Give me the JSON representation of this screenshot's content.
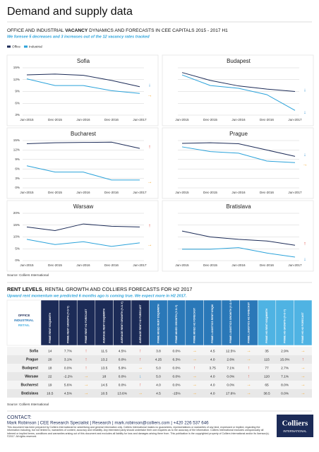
{
  "header": {
    "title": "Demand and supply data",
    "subtitle_parts": [
      "OFFICE AND INDUSTRIAL ",
      "VACANCY",
      " DYNAMICS AND FORECASTS IN CEE CAPITALS 2015 - 2017 H1"
    ],
    "lead": "We foresee 5 decreases and 3 increases out of the 12 vacancy rates tracked"
  },
  "chart_data": [
    {
      "type": "line",
      "title": "Sofia",
      "categories": [
        "Jun-2015",
        "Dec-2015",
        "Jun-2016",
        "Dec-2016",
        "Jun-2017"
      ],
      "ylim": [
        3,
        15
      ],
      "yticks": [
        {
          "value": 3,
          "label": "3%"
        },
        {
          "value": 6,
          "label": "6%"
        },
        {
          "value": 9,
          "label": "9%"
        },
        {
          "value": 12,
          "label": "12%"
        },
        {
          "value": 15,
          "label": "15%"
        }
      ],
      "grid": true,
      "series": [
        {
          "name": "Office",
          "color": "#1c2b57",
          "values": [
            13.2,
            13.4,
            13.1,
            11.8,
            10.2
          ],
          "forecast": "↓"
        },
        {
          "name": "Industrial",
          "color": "#2aa2da",
          "values": [
            12.2,
            10.5,
            10.5,
            9.2,
            8.5
          ],
          "forecast": "→"
        }
      ]
    },
    {
      "type": "line",
      "title": "Budapest",
      "categories": [
        "Jun-2015",
        "Dec-2015",
        "Jun-2016",
        "Dec-2016",
        "Jun-2017"
      ],
      "ylim": [
        3,
        15
      ],
      "yticks": [
        3,
        6,
        9,
        12,
        15
      ],
      "grid": true,
      "series": [
        {
          "name": "Office",
          "color": "#1c2b57",
          "values": [
            13.8,
            11.8,
            10.4,
            9.6,
            9.0
          ],
          "forecast": "↓"
        },
        {
          "name": "Industrial",
          "color": "#2aa2da",
          "values": [
            13.2,
            10.5,
            9.8,
            8.2,
            4.2
          ],
          "forecast": "↓"
        }
      ]
    },
    {
      "type": "line",
      "title": "Bucharest",
      "categories": [
        "Jun-2015",
        "Dec-2015",
        "Jun-2016",
        "Dec-2016",
        "Jun-2017"
      ],
      "ylim": [
        0,
        15
      ],
      "yticks": [
        {
          "value": 0,
          "label": "0%"
        },
        {
          "value": 3,
          "label": "3%"
        },
        {
          "value": 6,
          "label": "6%"
        },
        {
          "value": 9,
          "label": "9%"
        },
        {
          "value": 12,
          "label": "12%"
        },
        {
          "value": 15,
          "label": "15%"
        }
      ],
      "grid": true,
      "series": [
        {
          "name": "Office",
          "color": "#1c2b57",
          "values": [
            14.0,
            14.3,
            14.4,
            14.5,
            12.5
          ],
          "forecast": "↑"
        },
        {
          "name": "Industrial",
          "color": "#2aa2da",
          "values": [
            7.0,
            5.0,
            5.0,
            2.5,
            2.5
          ],
          "forecast": "→"
        }
      ]
    },
    {
      "type": "line",
      "title": "Prague",
      "categories": [
        "Jun-2015",
        "Dec-2015",
        "Jun-2016",
        "Dec-2016",
        "Jun-2017"
      ],
      "ylim": [
        0,
        15
      ],
      "yticks": [
        0,
        3,
        6,
        9,
        12,
        15
      ],
      "grid": true,
      "series": [
        {
          "name": "Office",
          "color": "#1c2b57",
          "values": [
            14.1,
            14.3,
            14.0,
            12.0,
            10.0
          ],
          "forecast": "↓"
        },
        {
          "name": "Industrial",
          "color": "#2aa2da",
          "values": [
            13.0,
            11.5,
            11.0,
            8.5,
            8.0
          ],
          "forecast": "→"
        }
      ]
    },
    {
      "type": "line",
      "title": "Warsaw",
      "categories": [
        "Jun-2015",
        "Dec-2015",
        "Jun-2016",
        "Dec-2016",
        "Jun-2017"
      ],
      "ylim": [
        0,
        20
      ],
      "yticks": [
        {
          "value": 0,
          "label": "0%"
        },
        {
          "value": 5,
          "label": "5%"
        },
        {
          "value": 10,
          "label": "10%"
        },
        {
          "value": 15,
          "label": "15%"
        },
        {
          "value": 20,
          "label": "20%"
        }
      ],
      "grid": true,
      "series": [
        {
          "name": "Office",
          "color": "#1c2b57",
          "values": [
            14.2,
            12.7,
            15.5,
            14.5,
            14.2
          ],
          "forecast": "↑"
        },
        {
          "name": "Industrial",
          "color": "#2aa2da",
          "values": [
            9.0,
            6.8,
            8.0,
            6.0,
            7.5
          ],
          "forecast": "→"
        }
      ]
    },
    {
      "type": "line",
      "title": "Bratislava",
      "categories": [
        "Jun-2015",
        "Dec-2015",
        "Jun-2016",
        "Dec-2016",
        "Jun-2017"
      ],
      "ylim": [
        0,
        20
      ],
      "yticks": [
        0,
        5,
        10,
        15,
        20
      ],
      "grid": true,
      "series": [
        {
          "name": "Office",
          "color": "#1c2b57",
          "values": [
            12.5,
            10.0,
            9.0,
            8.3,
            6.5
          ],
          "forecast": "↑"
        },
        {
          "name": "Industrial",
          "color": "#2aa2da",
          "values": [
            4.8,
            4.8,
            5.5,
            3.2,
            1.5
          ],
          "forecast": "↓"
        }
      ]
    }
  ],
  "charts_source": "Source: Colliers International",
  "rent_section": {
    "title_parts": [
      "RENT LEVELS",
      ", RENTAL GROWTH AND COLLIERS FORECASTS FOR H2 2017"
    ],
    "lead": "Upward rent momentum we predicted 6 months ago is coming true. We expect more in H2 2017."
  },
  "table": {
    "corner": [
      "OFFICE",
      "INDUSTRIAL",
      "RETAIL"
    ],
    "columns": [
      "PRIME RENT €/SQM/MTH",
      "PRIME RENT GROWTH (Y-O-Y)",
      "PRIME RENT H2 FORECAST",
      "AVERAGE RENT €/SQM/MTH",
      "AVERAGE RENT GROWTH (Y-O-Y)",
      "AVERAGE RENT H2 FORECAST",
      "PRIME MIXED RENT €/SQM/MTH",
      "PRIME MIXED GROWTH (Y-O-Y)",
      "PRIME MIXED H2 FORECAST",
      "PRIME LOGISTICS RENT €/SQM",
      "PRIME LOGISTICS GROWTH (Y-O-Y)",
      "PRIME LOGISTICS H2 FORECAST",
      "PRIME HS RENT €/SQM/MTH",
      "PRIME HS GROWTH (Y-O-Y)",
      "PRIME HS H2 FORECAST"
    ],
    "rows": [
      [
        "Sofia",
        "14",
        "7.7%",
        "↑",
        "11.5",
        "4.5%",
        "↑",
        "3.8",
        "0.0%",
        "→",
        "4.5",
        "12.5%",
        "→",
        "35",
        "2.9%",
        "→"
      ],
      [
        "Prague",
        "20",
        "3.1%",
        "↑",
        "13.2",
        "0.0%",
        "↑",
        "4.25",
        "6.3%",
        "→",
        "4.0",
        "2.6%",
        "→",
        "115",
        "15.0%",
        "↑"
      ],
      [
        "Budapest",
        "18",
        "0.0%",
        "↑",
        "13.5",
        "5.9%",
        "→",
        "5.0",
        "0.0%",
        "↑",
        "3.75",
        "7.1%",
        "↑",
        "77",
        "2.7%",
        "→"
      ],
      [
        "Warsaw",
        "22",
        "-2.2%",
        "→",
        "18",
        "0.0%",
        "↓",
        "5.0",
        "0.0%",
        "→",
        "4.0",
        "0.0%",
        "↑",
        "120",
        "7.1%",
        "→"
      ],
      [
        "Bucharest",
        "19",
        "5.6%",
        "→",
        "14.5",
        "0.0%",
        "↑",
        "4.0",
        "0.0%",
        "→",
        "4.0",
        "0.0%",
        "→",
        "65",
        "8.0%",
        "→"
      ],
      [
        "Bratislava",
        "16.5",
        "4.5%",
        "→",
        "10.5",
        "13.6%",
        "→",
        "4.5",
        "-15%",
        "→",
        "4.0",
        "17.6%",
        "→",
        "38.5",
        "0.0%",
        "→"
      ]
    ],
    "source": "Source: Colliers International"
  },
  "footer": {
    "contact_label": "CONTACT:",
    "contact": "Mark Robinson | CEE Research Specialist | Research | mark.robinson@colliers.com | +420 226 537 646",
    "disclaimer": "This document has been prepared by Colliers International for advertising and general information only. Colliers International makes no guarantees, representations or warranties of any kind, expressed or implied, regarding the information including, but not limited to, warranties of content, accuracy and reliability. Any interested party should undertake their own inquiries as to the accuracy of the information. Colliers International excludes unequivocally all inferred or implied terms, conditions and warranties arising out of this document and excludes all liability for loss and damages arising there from. This publication is the copyrighted property of Colliers International and/or its licensor(s). ©2017. All rights reserved.",
    "logo": "Colliers",
    "logo_sub": "INTERNATIONAL"
  }
}
